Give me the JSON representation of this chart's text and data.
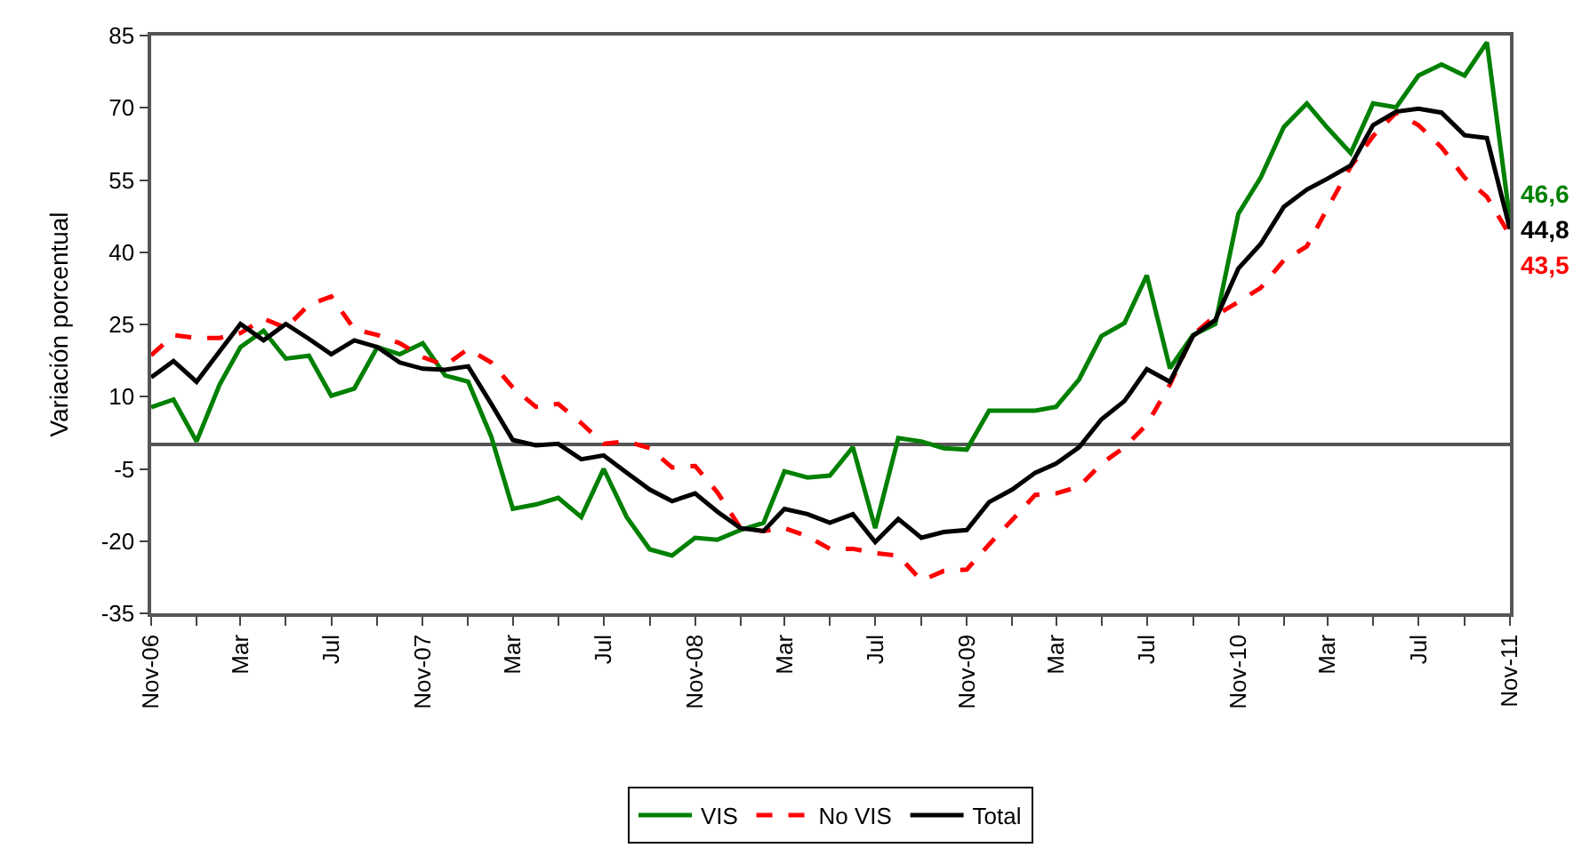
{
  "chart_data": {
    "type": "line",
    "ylabel": "Variación porcentual",
    "x": [
      "2006-11",
      "2006-12",
      "2007-01",
      "2007-02",
      "2007-03",
      "2007-04",
      "2007-05",
      "2007-06",
      "2007-07",
      "2007-08",
      "2007-09",
      "2007-10",
      "2007-11",
      "2007-12",
      "2008-01",
      "2008-02",
      "2008-03",
      "2008-04",
      "2008-05",
      "2008-06",
      "2008-07",
      "2008-08",
      "2008-09",
      "2008-10",
      "2008-11",
      "2008-12",
      "2009-01",
      "2009-02",
      "2009-03",
      "2009-04",
      "2009-05",
      "2009-06",
      "2009-07",
      "2009-08",
      "2009-09",
      "2009-10",
      "2009-11",
      "2009-12",
      "2010-01",
      "2010-02",
      "2010-03",
      "2010-04",
      "2010-05",
      "2010-06",
      "2010-07",
      "2010-08",
      "2010-09",
      "2010-10",
      "2010-11",
      "2010-12",
      "2011-01",
      "2011-02",
      "2011-03",
      "2011-04",
      "2011-05",
      "2011-06",
      "2011-07",
      "2011-08",
      "2011-09",
      "2011-10",
      "2011-11"
    ],
    "series": [
      {
        "name": "VIS",
        "color": "#008000",
        "line_style": "solid",
        "values": [
          7.8,
          9.4,
          0.7,
          12.5,
          20.3,
          23.7,
          17.9,
          18.5,
          10.2,
          11.7,
          20.3,
          18.8,
          21.1,
          14.4,
          13.1,
          1.7,
          -13.3,
          -12.4,
          -11.0,
          -15.0,
          -5.0,
          -15.0,
          -21.7,
          -23.0,
          -19.3,
          -19.7,
          -17.7,
          -16.2,
          -5.5,
          -6.8,
          -6.4,
          -0.5,
          -17.3,
          1.4,
          0.7,
          -0.7,
          -1.0,
          7.1,
          7.1,
          7.1,
          7.9,
          13.6,
          22.6,
          25.3,
          35.2,
          15.9,
          22.8,
          25.1,
          48.0,
          55.5,
          66.0,
          70.9,
          65.8,
          60.6,
          70.9,
          70.1,
          76.7,
          79.0,
          76.7,
          83.6,
          46.6
        ],
        "value_labels": [
          null,
          null,
          null,
          null,
          null,
          null,
          null,
          null,
          null,
          null,
          null,
          null,
          null,
          null,
          null,
          null,
          null,
          null,
          null,
          null,
          null,
          null,
          null,
          null,
          null,
          null,
          null,
          null,
          null,
          null,
          null,
          null,
          null,
          null,
          null,
          null,
          null,
          null,
          null,
          null,
          null,
          null,
          null,
          null,
          null,
          null,
          null,
          null,
          null,
          null,
          null,
          null,
          null,
          null,
          null,
          null,
          null,
          null,
          null,
          null,
          "46,6"
        ]
      },
      {
        "name": "No VIS",
        "color": "#ff0000",
        "line_style": "dashed",
        "values": [
          18.6,
          22.8,
          22.2,
          22.2,
          23.2,
          26.2,
          24.3,
          29.1,
          30.8,
          24.0,
          22.8,
          21.1,
          18.2,
          16.5,
          19.9,
          17.1,
          11.9,
          7.9,
          8.5,
          4.5,
          0.2,
          0.7,
          -0.7,
          -4.7,
          -4.4,
          -9.9,
          -17.3,
          -17.9,
          -17.3,
          -19.0,
          -21.6,
          -21.6,
          -22.5,
          -23.0,
          -28.2,
          -26.2,
          -25.9,
          -20.7,
          -15.6,
          -10.4,
          -10.1,
          -8.7,
          -3.9,
          -0.5,
          4.2,
          12.5,
          22.8,
          26.8,
          29.7,
          32.6,
          38.3,
          41.2,
          49.2,
          57.8,
          64.1,
          69.0,
          66.4,
          61.8,
          55.5,
          51.5,
          43.5
        ],
        "value_labels": [
          null,
          null,
          null,
          null,
          null,
          null,
          null,
          null,
          null,
          null,
          null,
          null,
          null,
          null,
          null,
          null,
          null,
          null,
          null,
          null,
          null,
          null,
          null,
          null,
          null,
          null,
          null,
          null,
          null,
          null,
          null,
          null,
          null,
          null,
          null,
          null,
          null,
          null,
          null,
          null,
          null,
          null,
          null,
          null,
          null,
          null,
          null,
          null,
          null,
          null,
          null,
          null,
          null,
          null,
          null,
          null,
          null,
          null,
          null,
          null,
          "43,5"
        ]
      },
      {
        "name": "Total",
        "color": "#000000",
        "line_style": "solid",
        "values": [
          14.0,
          17.4,
          13.1,
          19.4,
          25.1,
          21.7,
          25.1,
          22.0,
          18.8,
          21.7,
          20.3,
          17.1,
          15.8,
          15.6,
          16.3,
          8.5,
          1.0,
          -0.1,
          0.2,
          -3.0,
          -2.2,
          -5.8,
          -9.3,
          -11.7,
          -10.1,
          -13.9,
          -17.3,
          -17.9,
          -13.3,
          -14.4,
          -16.2,
          -14.4,
          -20.2,
          -15.4,
          -19.3,
          -18.1,
          -17.7,
          -11.9,
          -9.3,
          -5.8,
          -3.9,
          -0.5,
          5.3,
          9.1,
          15.7,
          13.1,
          22.6,
          25.9,
          36.6,
          41.7,
          49.4,
          53.0,
          55.3,
          58.0,
          66.4,
          69.2,
          69.8,
          69.0,
          64.3,
          63.7,
          44.8
        ],
        "value_labels": [
          null,
          null,
          null,
          null,
          null,
          null,
          null,
          null,
          null,
          null,
          null,
          null,
          null,
          null,
          null,
          null,
          null,
          null,
          null,
          null,
          null,
          null,
          null,
          null,
          null,
          null,
          null,
          null,
          null,
          null,
          null,
          null,
          null,
          null,
          null,
          null,
          null,
          null,
          null,
          null,
          null,
          null,
          null,
          null,
          null,
          null,
          null,
          null,
          null,
          null,
          null,
          null,
          null,
          null,
          null,
          null,
          null,
          null,
          null,
          null,
          "44,8"
        ]
      }
    ],
    "xlim": [
      "2006-11",
      "2011-11"
    ],
    "xticks": [
      {
        "value": "2006-11",
        "label": "Nov-06"
      },
      {
        "value": "2007-01",
        "label": null
      },
      {
        "value": "2007-03",
        "label": "Mar"
      },
      {
        "value": "2007-05",
        "label": null
      },
      {
        "value": "2007-07",
        "label": "Jul"
      },
      {
        "value": "2007-09",
        "label": null
      },
      {
        "value": "2007-11",
        "label": "Nov-07"
      },
      {
        "value": "2008-01",
        "label": null
      },
      {
        "value": "2008-03",
        "label": "Mar"
      },
      {
        "value": "2008-05",
        "label": null
      },
      {
        "value": "2008-07",
        "label": "Jul"
      },
      {
        "value": "2008-09",
        "label": null
      },
      {
        "value": "2008-11",
        "label": "Nov-08"
      },
      {
        "value": "2009-01",
        "label": null
      },
      {
        "value": "2009-03",
        "label": "Mar"
      },
      {
        "value": "2009-05",
        "label": null
      },
      {
        "value": "2009-07",
        "label": "Jul"
      },
      {
        "value": "2009-09",
        "label": null
      },
      {
        "value": "2009-11",
        "label": "Nov-09"
      },
      {
        "value": "2010-01",
        "label": null
      },
      {
        "value": "2010-03",
        "label": "Mar"
      },
      {
        "value": "2010-05",
        "label": null
      },
      {
        "value": "2010-07",
        "label": "Jul"
      },
      {
        "value": "2010-09",
        "label": null
      },
      {
        "value": "2010-11",
        "label": "Nov-10"
      },
      {
        "value": "2011-01",
        "label": null
      },
      {
        "value": "2011-03",
        "label": "Mar"
      },
      {
        "value": "2011-05",
        "label": null
      },
      {
        "value": "2011-07",
        "label": "Jul"
      },
      {
        "value": "2011-09",
        "label": null
      },
      {
        "value": "2011-11",
        "label": "Nov-11"
      }
    ],
    "ylim": [
      -35,
      85
    ],
    "yticks": [
      -35,
      -20,
      -5,
      10,
      25,
      40,
      55,
      70,
      85
    ],
    "legend": "bottom",
    "marker": "none"
  }
}
